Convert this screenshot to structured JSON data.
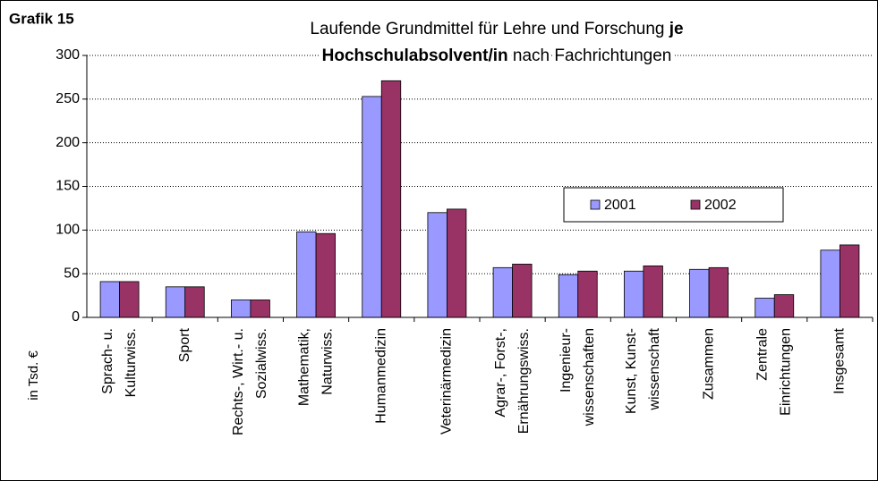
{
  "chart_data": {
    "type": "bar",
    "label": "Grafik 15",
    "title": [
      [
        {
          "text": "Laufende Grundmittel für Lehre und Forschung ",
          "bold": false
        },
        {
          "text": "je",
          "bold": true
        }
      ],
      [
        {
          "text": "Hochschulabsolvent/in",
          "bold": true
        },
        {
          "text": " nach Fachrichtungen",
          "bold": false
        }
      ]
    ],
    "y_label": "in Tsd. €",
    "categories": [
      [
        "Sprach- u.",
        "Kulturwiss."
      ],
      [
        "Sport"
      ],
      [
        "Rechts-, Wirt.- u.",
        "Sozialwiss."
      ],
      [
        "Mathematik,",
        "Naturwiss."
      ],
      [
        "Humanmedizin"
      ],
      [
        "Veterinärmedizin"
      ],
      [
        "Agrar-, Forst-,",
        "Ernährungswiss."
      ],
      [
        "Ingenieur-",
        "wissenschaften"
      ],
      [
        "Kunst, Kunst-",
        "wissenschaft"
      ],
      [
        "Zusammen"
      ],
      [
        "Zentrale",
        "Einrichtungen"
      ],
      [
        "Insgesamt"
      ]
    ],
    "series": [
      {
        "name": "2001",
        "color": "#9999ff",
        "values": [
          41,
          35,
          20,
          98,
          253,
          120,
          57,
          49,
          53,
          55,
          22,
          77
        ]
      },
      {
        "name": "2002",
        "color": "#993366",
        "values": [
          41,
          35,
          20,
          96,
          271,
          124,
          61,
          53,
          59,
          57,
          26,
          83
        ]
      }
    ],
    "ylim": [
      0,
      300
    ],
    "yticks": [
      0,
      50,
      100,
      150,
      200,
      250,
      300
    ],
    "grid": true
  }
}
